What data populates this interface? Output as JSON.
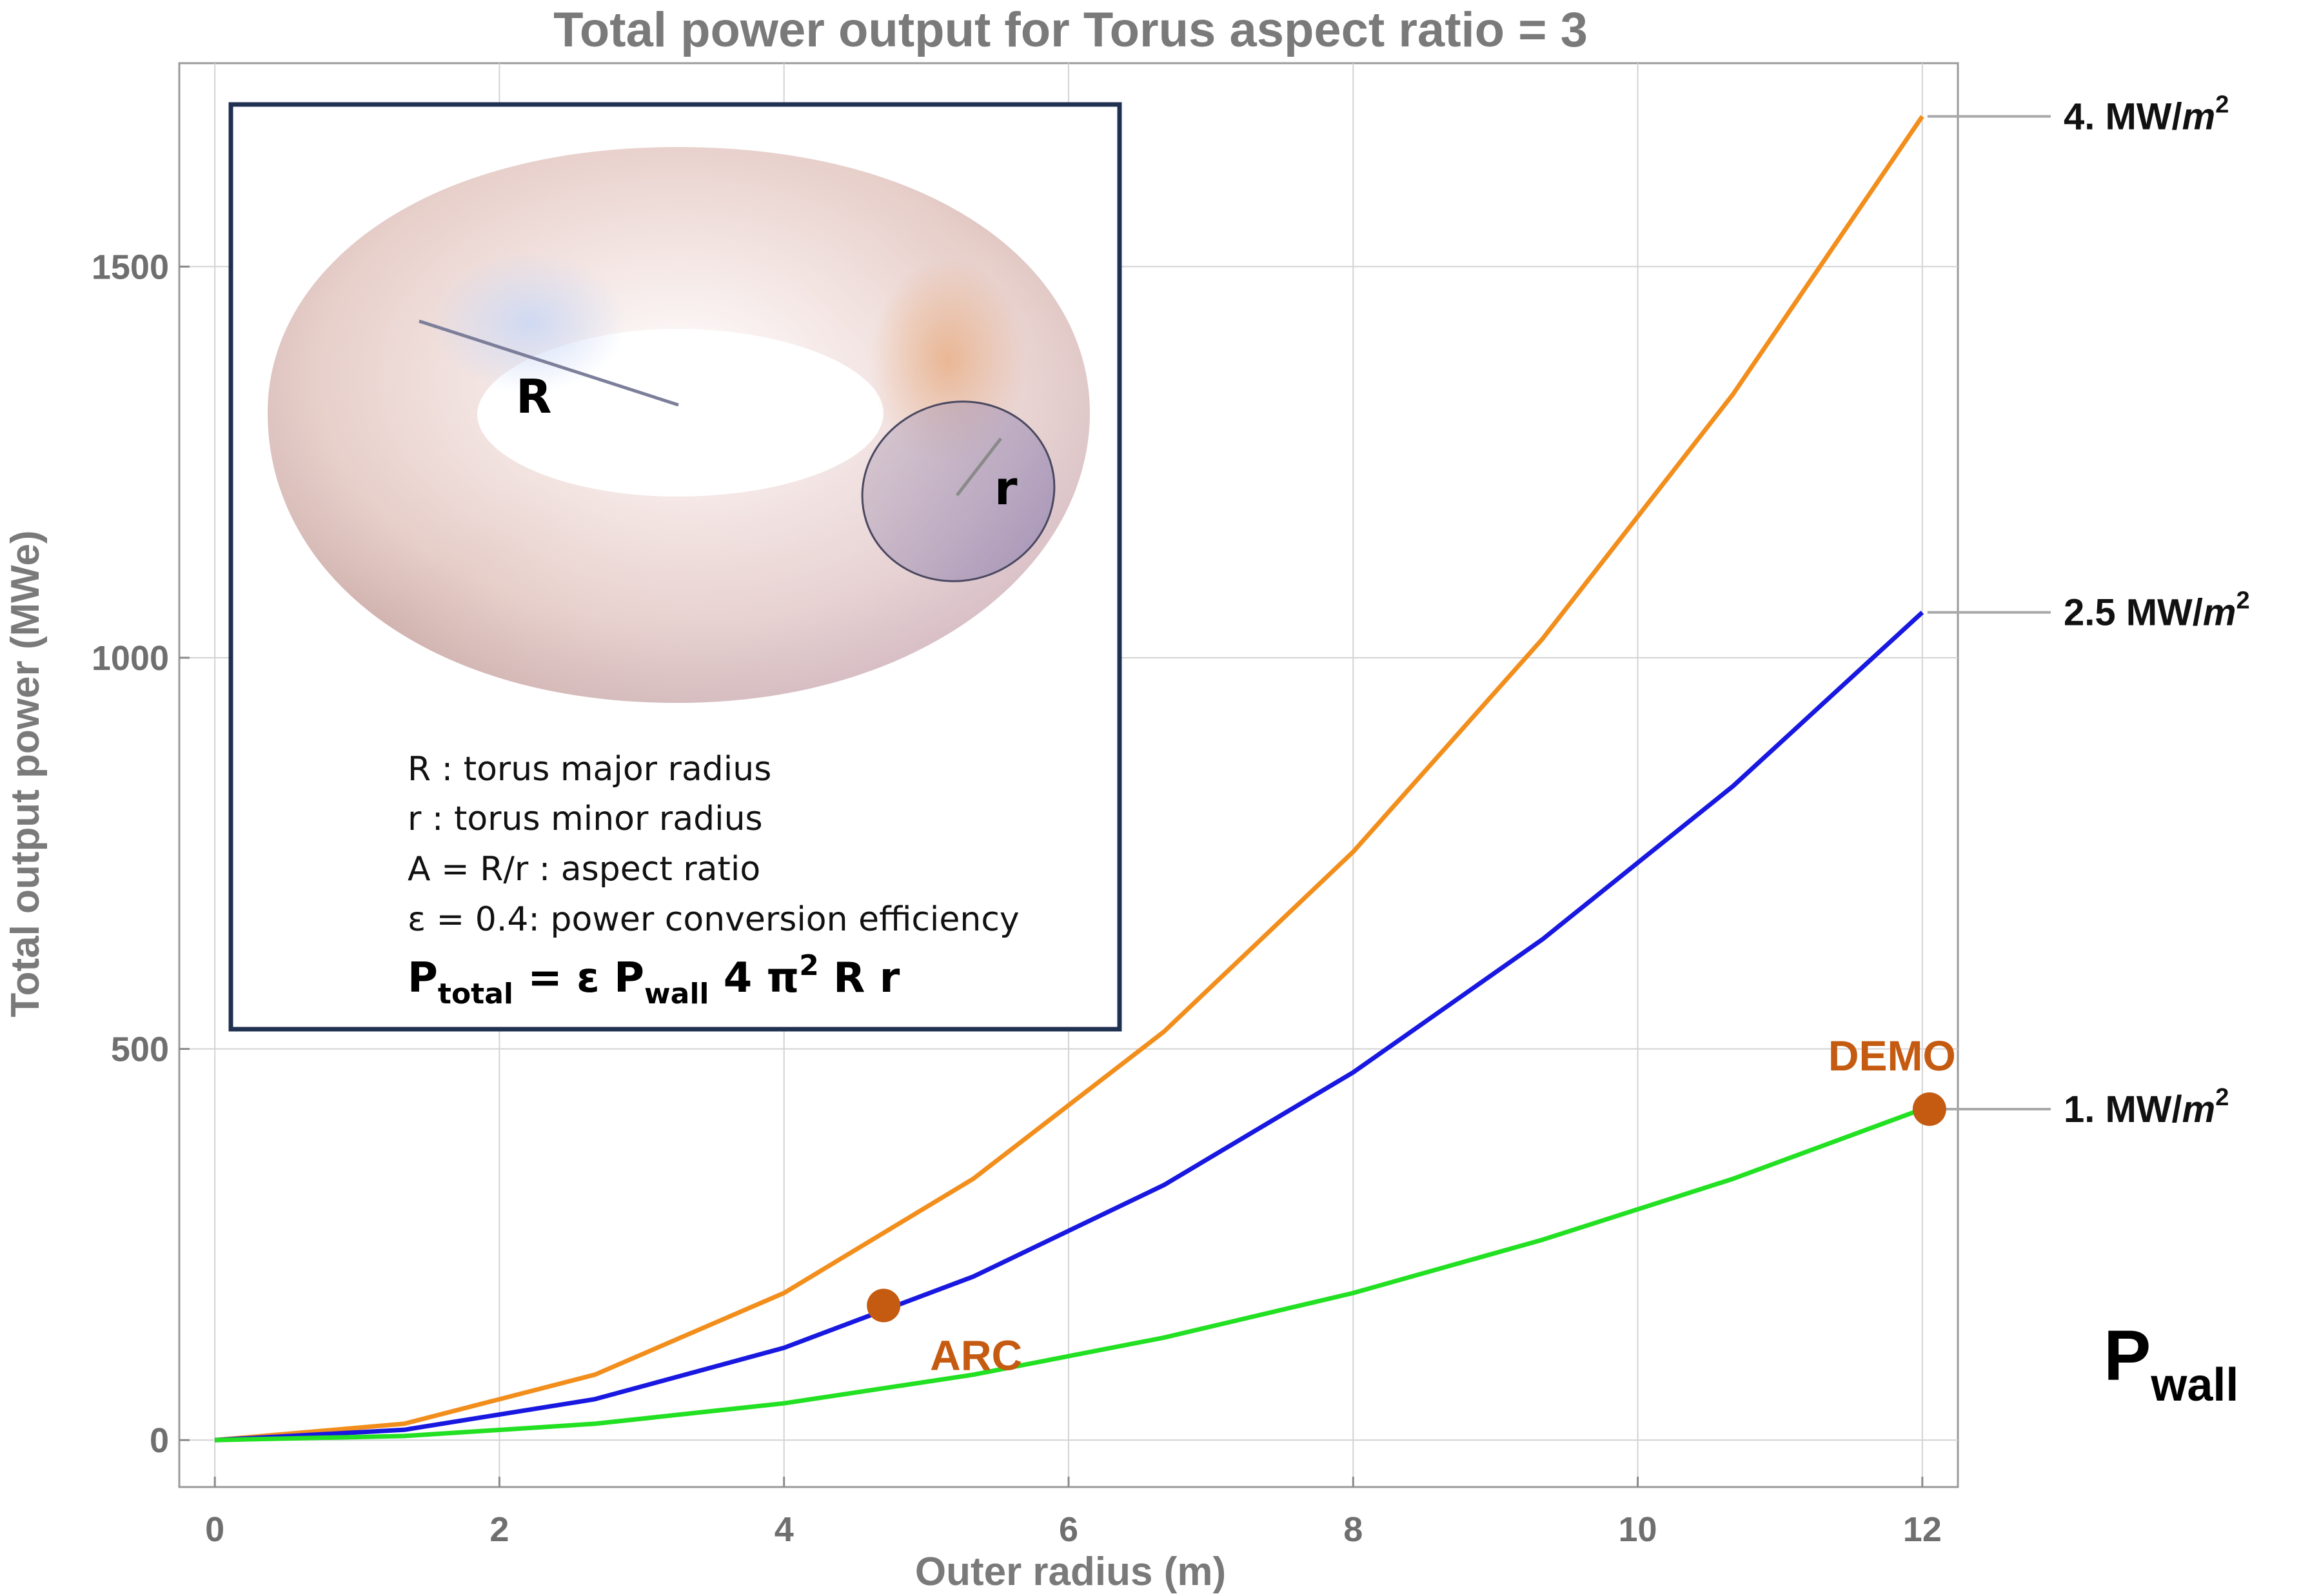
{
  "chart_data": {
    "type": "line",
    "title": "Total power output for Torus aspect ratio = 3",
    "xlabel": "Outer radius (m)",
    "ylabel": "Total output power (MWe)",
    "xlim": [
      -0.25,
      12.25
    ],
    "ylim": [
      -60,
      1760
    ],
    "xticks": [
      0,
      2,
      4,
      6,
      8,
      10,
      12
    ],
    "yticks": [
      0,
      500,
      1000,
      1500
    ],
    "grid": true,
    "x": [
      0,
      1.33,
      2.67,
      4,
      5.33,
      6.67,
      8,
      9.33,
      10.67,
      12
    ],
    "series": [
      {
        "name": "4. MW/m2",
        "color": "#f28e1c",
        "values": [
          0,
          20.9,
          83.6,
          188,
          334,
          522,
          752,
          1024,
          1337,
          1692
        ]
      },
      {
        "name": "2.5 MW/m2",
        "color": "#1818e0",
        "values": [
          0,
          13.1,
          52.3,
          118,
          209,
          326,
          470,
          640,
          836,
          1058
        ]
      },
      {
        "name": "1. MW/m2",
        "color": "#22e022",
        "values": [
          0,
          5.2,
          20.9,
          47,
          83.6,
          131,
          188,
          256,
          334,
          423
        ]
      }
    ],
    "series_labels": [
      {
        "text": "4. MW/",
        "unit_base": "m",
        "unit_exp": "2"
      },
      {
        "text": "2.5 MW/",
        "unit_base": "m",
        "unit_exp": "2"
      },
      {
        "text": "1. MW/",
        "unit_base": "m",
        "unit_exp": "2"
      }
    ],
    "points": [
      {
        "label": "ARC",
        "x": 4.7,
        "y": 172,
        "color": "#c55a11"
      },
      {
        "label": "DEMO",
        "x": 12.05,
        "y": 423,
        "color": "#c55a11"
      }
    ],
    "legend_title": {
      "base": "P",
      "sub": "wall"
    }
  },
  "inset": {
    "torus_labels": {
      "major": "R",
      "minor": "r"
    },
    "legend_lines": [
      "R : torus major radius",
      "r  : torus minor radius",
      "A = R/r : aspect ratio",
      "ε  = 0.4: power conversion efficiency"
    ],
    "formula": {
      "p": "P",
      "p_sub": "total",
      "eq": " = ε P",
      "wall_sub": "wall",
      "mid": " 4 π",
      "sup": "2",
      "end": " R r"
    }
  }
}
